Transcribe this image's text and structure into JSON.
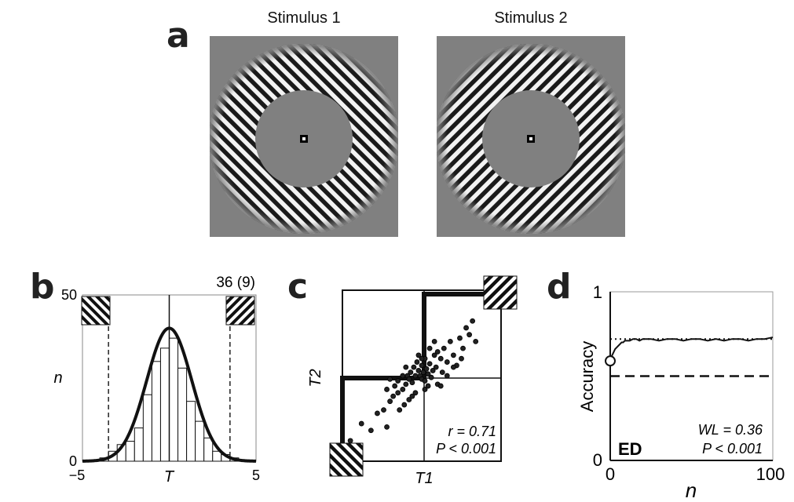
{
  "panel_labels": {
    "a": "a",
    "b": "b",
    "c": "c",
    "d": "d"
  },
  "panel_a": {
    "stimulus1_title": "Stimulus 1",
    "stimulus2_title": "Stimulus 2",
    "background_color": "#808080",
    "grating_orientation": "diagonal"
  },
  "chart_data": [
    {
      "panel": "b",
      "type": "bar",
      "annotation": "36 (9)",
      "xlabel": "T",
      "ylabel": "n",
      "x_ticks": [
        "−5",
        "5"
      ],
      "y_ticks": [
        "0",
        "50"
      ],
      "xlim": [
        -5,
        5
      ],
      "ylim": [
        0,
        50
      ],
      "bin_width": 0.5,
      "bins_left": [
        -4.0,
        -3.5,
        -3.0,
        -2.5,
        -2.0,
        -1.5,
        -1.0,
        -0.5,
        0.0,
        0.5,
        1.0,
        1.5,
        2.0,
        2.5,
        3.0,
        3.5
      ],
      "values": [
        1,
        3,
        5,
        6,
        10,
        20,
        30,
        34,
        37,
        28,
        18,
        12,
        7,
        3,
        2,
        1
      ],
      "dashed_lines_x": [
        -3.5,
        3.5
      ],
      "fit_curve": {
        "mean": 0.0,
        "sd": 1.3,
        "peak": 40
      }
    },
    {
      "panel": "c",
      "type": "scatter",
      "xlabel": "T1",
      "ylabel": "T2",
      "annotations": [
        "r = 0.71",
        "P < 0.001"
      ],
      "points": [
        [
          0.05,
          0.12
        ],
        [
          0.12,
          0.22
        ],
        [
          0.18,
          0.18
        ],
        [
          0.22,
          0.28
        ],
        [
          0.26,
          0.3
        ],
        [
          0.28,
          0.2
        ],
        [
          0.3,
          0.35
        ],
        [
          0.32,
          0.38
        ],
        [
          0.35,
          0.4
        ],
        [
          0.36,
          0.3
        ],
        [
          0.38,
          0.42
        ],
        [
          0.4,
          0.45
        ],
        [
          0.41,
          0.5
        ],
        [
          0.42,
          0.48
        ],
        [
          0.43,
          0.52
        ],
        [
          0.44,
          0.46
        ],
        [
          0.45,
          0.55
        ],
        [
          0.46,
          0.5
        ],
        [
          0.47,
          0.58
        ],
        [
          0.48,
          0.53
        ],
        [
          0.49,
          0.5
        ],
        [
          0.5,
          0.56
        ],
        [
          0.5,
          0.48
        ],
        [
          0.51,
          0.52
        ],
        [
          0.52,
          0.6
        ],
        [
          0.52,
          0.47
        ],
        [
          0.53,
          0.54
        ],
        [
          0.54,
          0.51
        ],
        [
          0.55,
          0.57
        ],
        [
          0.56,
          0.49
        ],
        [
          0.57,
          0.53
        ],
        [
          0.58,
          0.62
        ],
        [
          0.59,
          0.55
        ],
        [
          0.6,
          0.45
        ],
        [
          0.62,
          0.6
        ],
        [
          0.63,
          0.52
        ],
        [
          0.64,
          0.66
        ],
        [
          0.66,
          0.58
        ],
        [
          0.68,
          0.7
        ],
        [
          0.7,
          0.62
        ],
        [
          0.72,
          0.56
        ],
        [
          0.74,
          0.72
        ],
        [
          0.76,
          0.66
        ],
        [
          0.78,
          0.78
        ],
        [
          0.8,
          0.74
        ],
        [
          0.82,
          0.82
        ],
        [
          0.84,
          0.7
        ],
        [
          0.46,
          0.4
        ],
        [
          0.4,
          0.55
        ],
        [
          0.38,
          0.5
        ],
        [
          0.35,
          0.47
        ],
        [
          0.33,
          0.44
        ],
        [
          0.3,
          0.48
        ],
        [
          0.28,
          0.42
        ],
        [
          0.55,
          0.66
        ],
        [
          0.58,
          0.7
        ],
        [
          0.6,
          0.64
        ],
        [
          0.5,
          0.6
        ],
        [
          0.48,
          0.62
        ],
        [
          0.62,
          0.44
        ],
        [
          0.66,
          0.5
        ],
        [
          0.44,
          0.38
        ],
        [
          0.42,
          0.36
        ],
        [
          0.39,
          0.33
        ],
        [
          0.52,
          0.42
        ],
        [
          0.54,
          0.44
        ],
        [
          0.7,
          0.55
        ],
        [
          0.75,
          0.6
        ]
      ]
    },
    {
      "panel": "d",
      "type": "line",
      "xlabel": "n",
      "ylabel": "Accuracy",
      "x_ticks": [
        "0",
        "100"
      ],
      "y_ticks": [
        "0",
        "1"
      ],
      "xlim": [
        0,
        100
      ],
      "ylim": [
        0,
        1
      ],
      "dotted_line_y": 0.72,
      "dashed_line_y": 0.5,
      "start_point": [
        0,
        0.59
      ],
      "annotations": [
        "ED",
        "WL = 0.36",
        "P < 0.001"
      ],
      "x": [
        0,
        1,
        2,
        3,
        4,
        5,
        6,
        7,
        8,
        9,
        10,
        12,
        14,
        16,
        18,
        20,
        25,
        30,
        35,
        40,
        45,
        50,
        55,
        60,
        65,
        70,
        75,
        80,
        85,
        90,
        95,
        100
      ],
      "y": [
        0.59,
        0.62,
        0.64,
        0.66,
        0.67,
        0.68,
        0.69,
        0.7,
        0.7,
        0.71,
        0.71,
        0.71,
        0.72,
        0.72,
        0.71,
        0.72,
        0.72,
        0.71,
        0.72,
        0.72,
        0.71,
        0.72,
        0.72,
        0.71,
        0.72,
        0.71,
        0.72,
        0.72,
        0.71,
        0.72,
        0.72,
        0.73
      ]
    }
  ]
}
